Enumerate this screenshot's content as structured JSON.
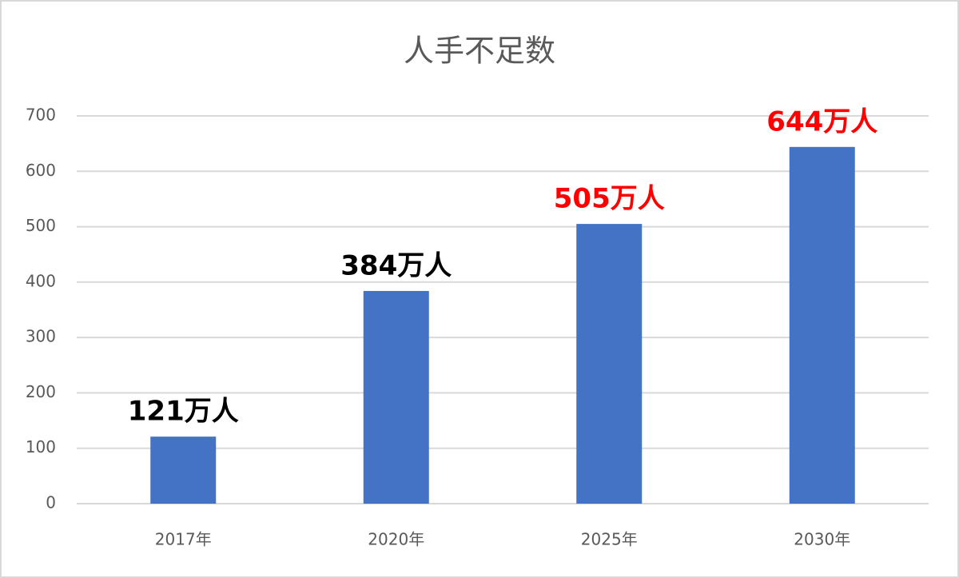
{
  "chart_data": {
    "type": "bar",
    "title": "人手不足数",
    "categories": [
      "2017年",
      "2020年",
      "2025年",
      "2030年"
    ],
    "values": [
      121,
      384,
      505,
      644
    ],
    "value_labels": [
      "121万人",
      "384万人",
      "505万人",
      "644万人"
    ],
    "value_label_colors": [
      "#000000",
      "#000000",
      "#ff0000",
      "#ff0000"
    ],
    "color": "#4472c4",
    "ylim": [
      0,
      700
    ],
    "yticks": [
      0,
      100,
      200,
      300,
      400,
      500,
      600,
      700
    ],
    "grid": true
  }
}
